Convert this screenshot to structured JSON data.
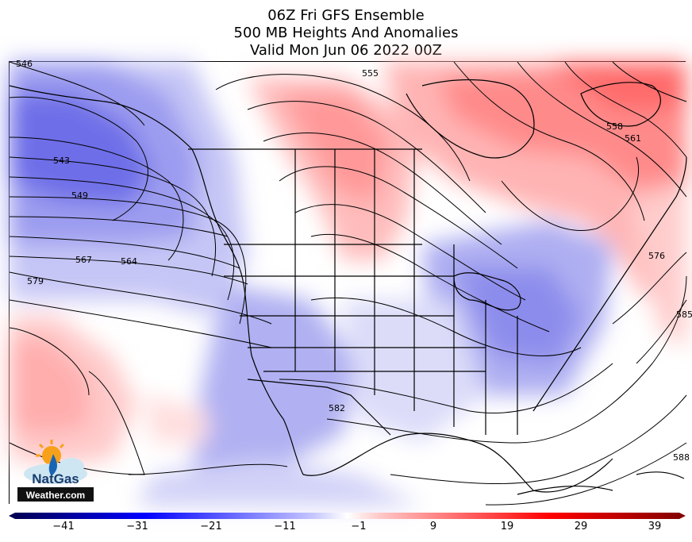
{
  "title": {
    "line1": "06Z Fri GFS Ensemble",
    "line2": "500 MB Heights And Anomalies",
    "line3": "Valid Mon Jun 06 2022 00Z"
  },
  "contour_labels": [
    "546",
    "543",
    "549",
    "567",
    "564",
    "579",
    "555",
    "558",
    "561",
    "576",
    "585",
    "582",
    "588"
  ],
  "colorbar": {
    "ticks": [
      "−41",
      "−31",
      "−21",
      "−11",
      "−1",
      "9",
      "19",
      "29",
      "39"
    ],
    "colors": {
      "deep_negative": "#00004c",
      "negative": "#0000ff",
      "neutral": "#ffffff",
      "positive": "#ff0000",
      "deep_positive": "#800000"
    }
  },
  "logo": {
    "line1": "NatGas",
    "line2": "Weather.com"
  }
}
